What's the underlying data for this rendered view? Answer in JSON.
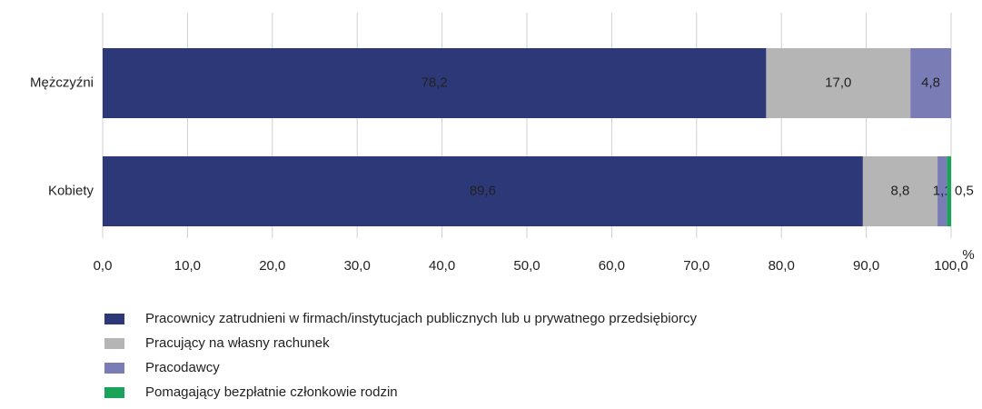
{
  "chart_data": {
    "type": "stacked_hbar",
    "categories": [
      "Mężczyźni",
      "Kobiety"
    ],
    "series": [
      {
        "name": "Pracownicy zatrudnieni w firmach/instytucjach publicznych lub u prywatnego przedsiębiorcy",
        "color": "#2d3878",
        "values": [
          78.2,
          89.6
        ],
        "value_labels": [
          "78,2",
          "89,6"
        ]
      },
      {
        "name": "Pracujący na własny rachunek",
        "color": "#b5b5b5",
        "values": [
          17.0,
          8.8
        ],
        "value_labels": [
          "17,0",
          "8,8"
        ]
      },
      {
        "name": "Pracodawcy",
        "color": "#7a7cb6",
        "values": [
          4.8,
          1.1
        ],
        "value_labels": [
          "4,8",
          "1,1"
        ]
      },
      {
        "name": "Pomagający bezpłatnie członkowie rodzin",
        "color": "#1ba35a",
        "values": [
          null,
          0.5
        ],
        "value_labels": [
          null,
          "0,5"
        ]
      }
    ],
    "xlabel": "%",
    "xlim": [
      0,
      100
    ],
    "xticks": [
      {
        "value": 0,
        "label": "0,0"
      },
      {
        "value": 10,
        "label": "10,0"
      },
      {
        "value": 20,
        "label": "20,0"
      },
      {
        "value": 30,
        "label": "30,0"
      },
      {
        "value": 40,
        "label": "40,0"
      },
      {
        "value": 50,
        "label": "50,0"
      },
      {
        "value": 60,
        "label": "60,0"
      },
      {
        "value": 70,
        "label": "70,0"
      },
      {
        "value": 80,
        "label": "80,0"
      },
      {
        "value": 90,
        "label": "90,0"
      },
      {
        "value": 100,
        "label": "100,0"
      }
    ],
    "grid": true,
    "legend": "bottom"
  }
}
